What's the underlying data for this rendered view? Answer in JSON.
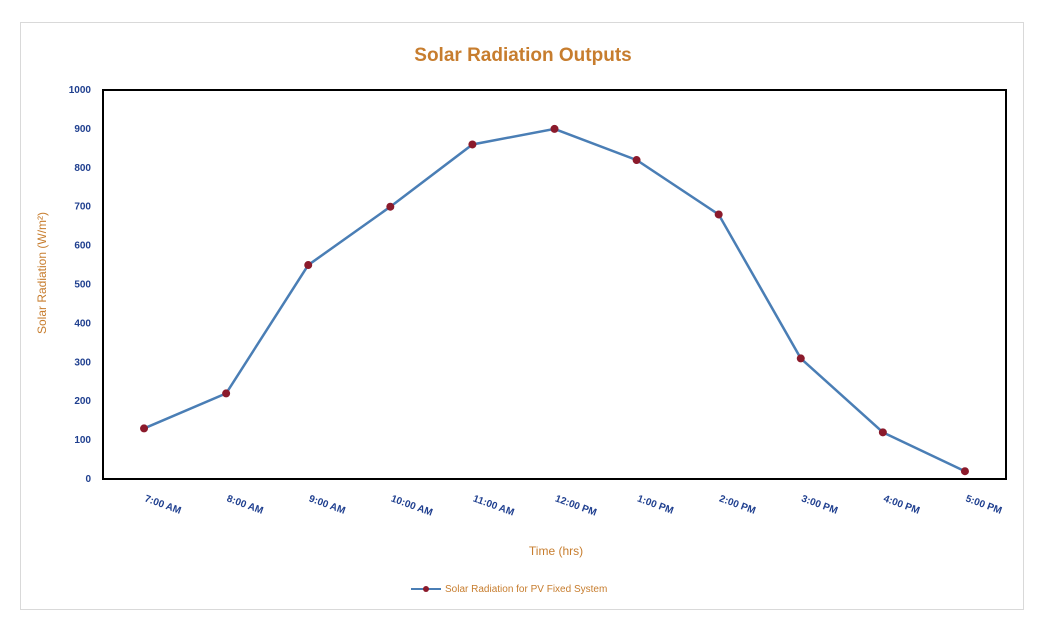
{
  "chart_data": {
    "type": "line",
    "title": "Solar Radiation Outputs",
    "xlabel": "Time (hrs)",
    "ylabel": "Solar Radiation (W/m²)",
    "categories": [
      "7:00 AM",
      "8:00 AM",
      "9:00 AM",
      "10:00 AM",
      "11:00 AM",
      "12:00 PM",
      "1:00 PM",
      "2:00 PM",
      "3:00 PM",
      "4:00 PM",
      "5:00 PM"
    ],
    "series": [
      {
        "name": "Solar Radiation for PV Fixed System",
        "values": [
          130,
          220,
          550,
          700,
          860,
          900,
          820,
          680,
          310,
          120,
          20
        ]
      }
    ],
    "ylim": [
      0,
      1000
    ],
    "yticks": [
      0,
      100,
      200,
      300,
      400,
      500,
      600,
      700,
      800,
      900,
      1000
    ],
    "grid": false,
    "legend_position": "bottom",
    "colors": {
      "line": "#4a7eb5",
      "marker": "#8b1a2b",
      "title": "#c77d2e",
      "tick": "#1f3f8f",
      "plot_border": "#000000"
    }
  }
}
